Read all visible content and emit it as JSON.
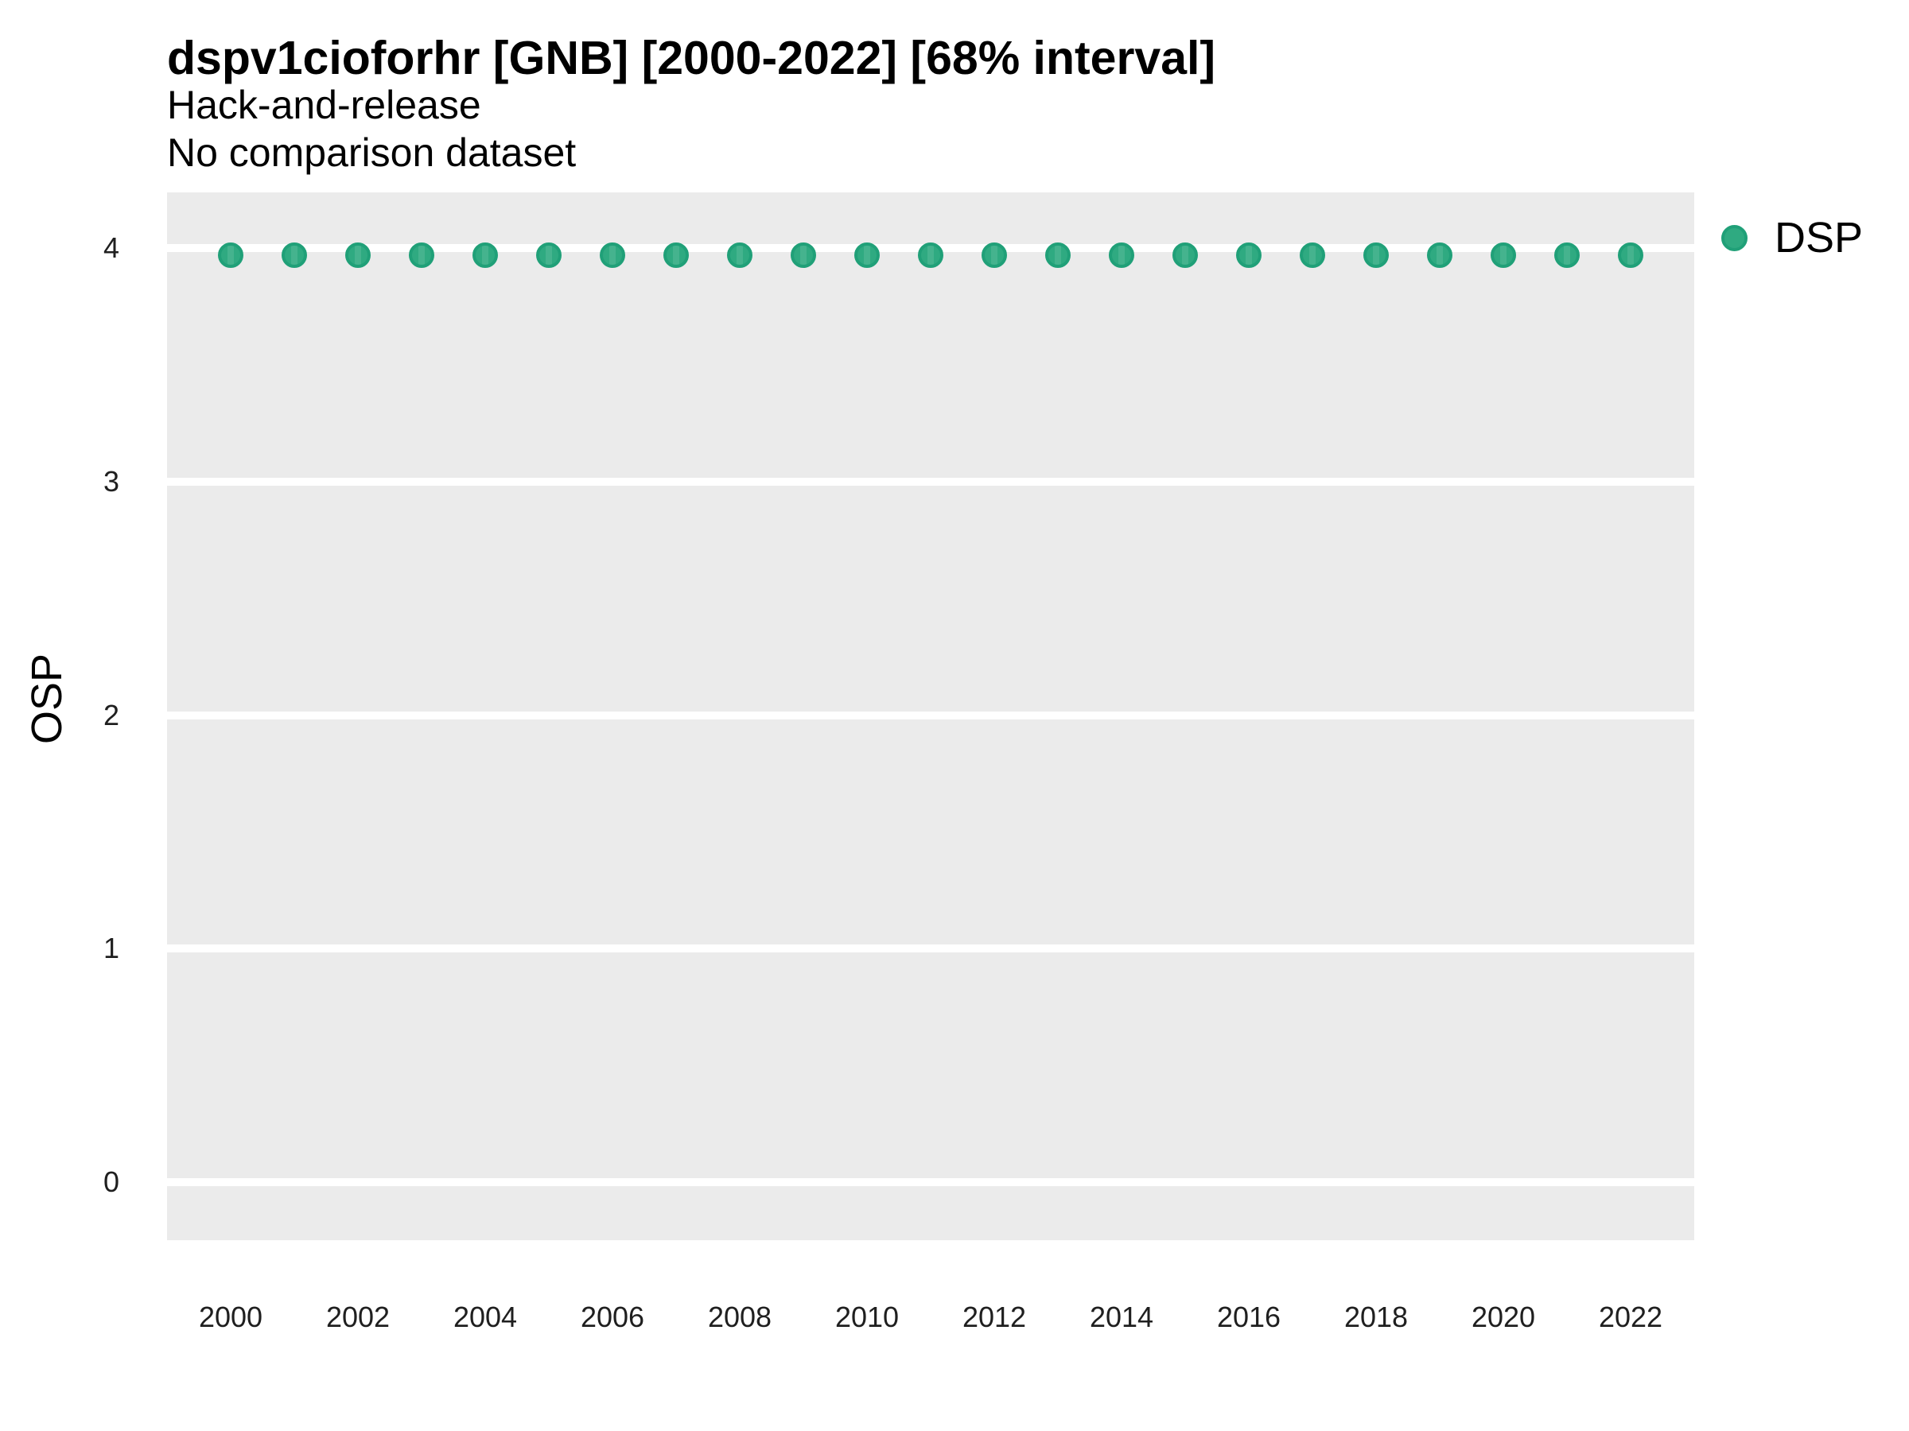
{
  "header": {
    "title": "dspv1cioforhr [GNB] [2000-2022] [68% interval]",
    "subtitle1": "Hack-and-release",
    "subtitle2": "No comparison dataset"
  },
  "axes": {
    "y_label": "OSP"
  },
  "legend": {
    "label": "DSP"
  },
  "colors": {
    "panel_background": "#ebebeb",
    "gridline": "#ffffff",
    "point_fill": "#2faa81",
    "point_stroke": "#20a078",
    "interval_stripe": "#45b38e",
    "text": "#000000"
  },
  "chart_data": {
    "type": "scatter",
    "title": "dspv1cioforhr [GNB] [2000-2022] [68% interval]",
    "subtitle": "Hack-and-release",
    "note": "No comparison dataset",
    "interval": "68% interval",
    "xlabel": "",
    "ylabel": "OSP",
    "legend_position": "right-top",
    "grid": "major-horizontal-only",
    "xlim": [
      1999,
      2023
    ],
    "ylim": [
      -0.25,
      4.24
    ],
    "x_ticks": [
      2000,
      2002,
      2004,
      2006,
      2008,
      2010,
      2012,
      2014,
      2016,
      2018,
      2020,
      2022
    ],
    "y_ticks": [
      0,
      1,
      2,
      3,
      4
    ],
    "x": [
      2000,
      2001,
      2002,
      2003,
      2004,
      2005,
      2006,
      2007,
      2008,
      2009,
      2010,
      2011,
      2012,
      2013,
      2014,
      2015,
      2016,
      2017,
      2018,
      2019,
      2020,
      2021,
      2022
    ],
    "series": [
      {
        "name": "DSP",
        "color": "#2faa81",
        "values": [
          3.97,
          3.97,
          3.97,
          3.97,
          3.97,
          3.97,
          3.97,
          3.97,
          3.97,
          3.97,
          3.97,
          3.97,
          3.97,
          3.97,
          3.97,
          3.97,
          3.97,
          3.97,
          3.97,
          3.97,
          3.97,
          3.97,
          3.97
        ]
      }
    ]
  }
}
